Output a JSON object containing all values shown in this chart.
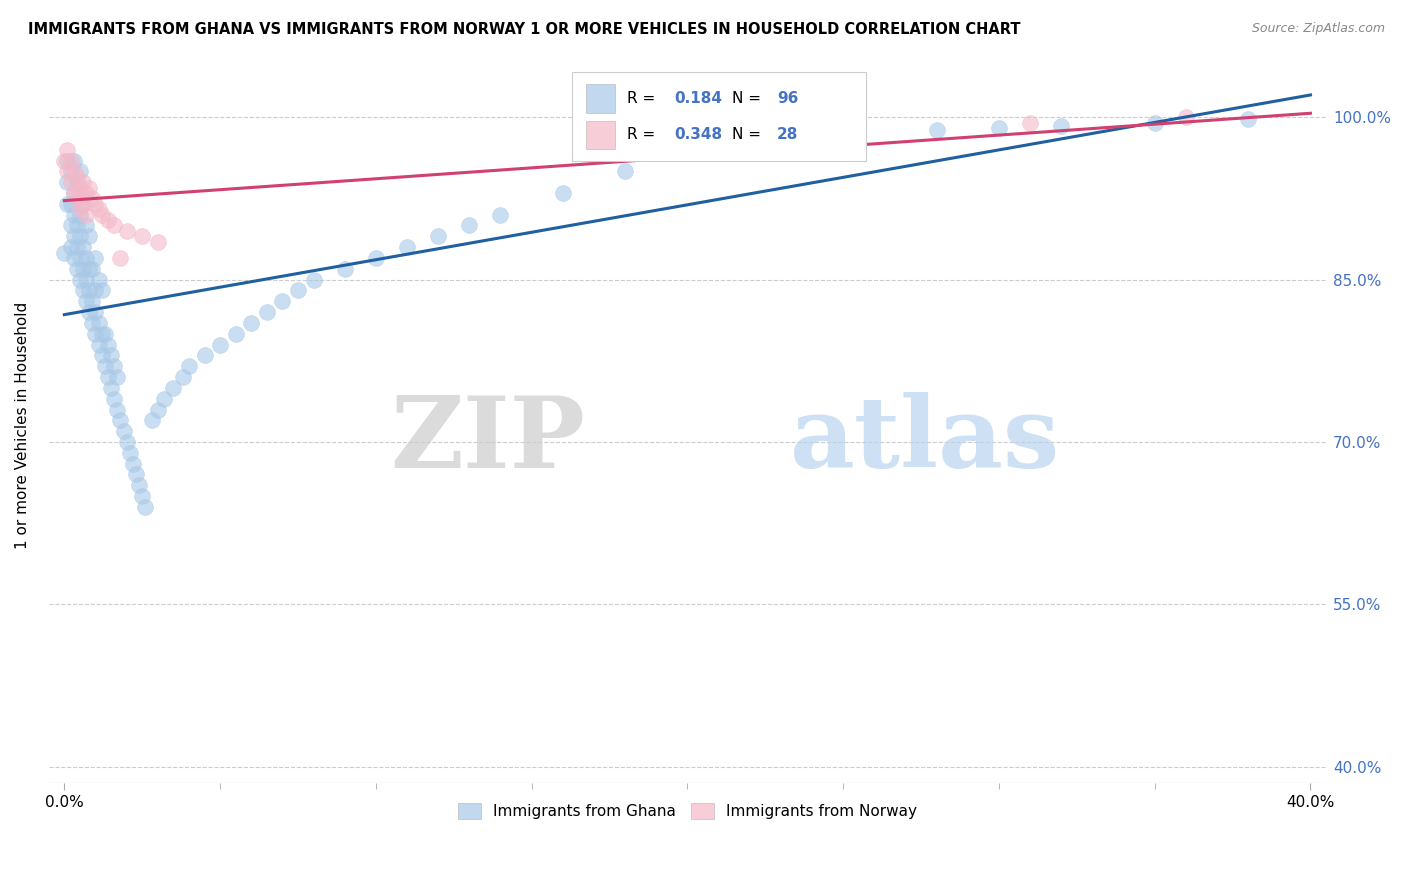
{
  "title": "IMMIGRANTS FROM GHANA VS IMMIGRANTS FROM NORWAY 1 OR MORE VEHICLES IN HOUSEHOLD CORRELATION CHART",
  "source": "Source: ZipAtlas.com",
  "ylabel": "1 or more Vehicles in Household",
  "ytick_vals": [
    1.0,
    0.85,
    0.7,
    0.55,
    0.4
  ],
  "ytick_labels": [
    "100.0%",
    "85.0%",
    "70.0%",
    "55.0%",
    "40.0%"
  ],
  "legend_ghana": "Immigrants from Ghana",
  "legend_norway": "Immigrants from Norway",
  "R_ghana": 0.184,
  "N_ghana": 96,
  "R_norway": 0.348,
  "N_norway": 28,
  "ghana_color": "#a8c8e8",
  "norway_color": "#f4b8c8",
  "ghana_line_color": "#2060a0",
  "norway_line_color": "#d04070",
  "watermark_zip": "ZIP",
  "watermark_atlas": "atlas",
  "ghana_x": [
    0.0,
    0.001,
    0.001,
    0.001,
    0.002,
    0.002,
    0.002,
    0.002,
    0.003,
    0.003,
    0.003,
    0.003,
    0.003,
    0.004,
    0.004,
    0.004,
    0.004,
    0.005,
    0.005,
    0.005,
    0.005,
    0.005,
    0.006,
    0.006,
    0.006,
    0.006,
    0.007,
    0.007,
    0.007,
    0.007,
    0.008,
    0.008,
    0.008,
    0.008,
    0.009,
    0.009,
    0.009,
    0.01,
    0.01,
    0.01,
    0.01,
    0.011,
    0.011,
    0.011,
    0.012,
    0.012,
    0.012,
    0.013,
    0.013,
    0.014,
    0.014,
    0.015,
    0.015,
    0.016,
    0.016,
    0.017,
    0.017,
    0.018,
    0.019,
    0.02,
    0.021,
    0.022,
    0.023,
    0.024,
    0.025,
    0.026,
    0.028,
    0.03,
    0.032,
    0.035,
    0.038,
    0.04,
    0.045,
    0.05,
    0.055,
    0.06,
    0.065,
    0.07,
    0.075,
    0.08,
    0.09,
    0.1,
    0.11,
    0.12,
    0.13,
    0.14,
    0.16,
    0.18,
    0.2,
    0.22,
    0.25,
    0.28,
    0.3,
    0.32,
    0.35,
    0.38
  ],
  "ghana_y": [
    0.875,
    0.92,
    0.94,
    0.96,
    0.88,
    0.9,
    0.92,
    0.95,
    0.87,
    0.89,
    0.91,
    0.93,
    0.96,
    0.86,
    0.88,
    0.9,
    0.94,
    0.85,
    0.87,
    0.89,
    0.91,
    0.95,
    0.84,
    0.86,
    0.88,
    0.92,
    0.83,
    0.85,
    0.87,
    0.9,
    0.82,
    0.84,
    0.86,
    0.89,
    0.81,
    0.83,
    0.86,
    0.8,
    0.82,
    0.84,
    0.87,
    0.79,
    0.81,
    0.85,
    0.78,
    0.8,
    0.84,
    0.77,
    0.8,
    0.76,
    0.79,
    0.75,
    0.78,
    0.74,
    0.77,
    0.73,
    0.76,
    0.72,
    0.71,
    0.7,
    0.69,
    0.68,
    0.67,
    0.66,
    0.65,
    0.64,
    0.72,
    0.73,
    0.74,
    0.75,
    0.76,
    0.77,
    0.78,
    0.79,
    0.8,
    0.81,
    0.82,
    0.83,
    0.84,
    0.85,
    0.86,
    0.87,
    0.88,
    0.89,
    0.9,
    0.91,
    0.93,
    0.95,
    0.97,
    0.98,
    0.985,
    0.988,
    0.99,
    0.992,
    0.995,
    0.998
  ],
  "norway_x": [
    0.0,
    0.001,
    0.001,
    0.002,
    0.002,
    0.003,
    0.003,
    0.004,
    0.004,
    0.005,
    0.005,
    0.006,
    0.006,
    0.007,
    0.007,
    0.008,
    0.009,
    0.01,
    0.011,
    0.012,
    0.014,
    0.016,
    0.018,
    0.02,
    0.025,
    0.03,
    0.31,
    0.36
  ],
  "norway_y": [
    0.96,
    0.97,
    0.95,
    0.96,
    0.94,
    0.95,
    0.93,
    0.945,
    0.925,
    0.935,
    0.915,
    0.94,
    0.92,
    0.93,
    0.91,
    0.935,
    0.925,
    0.92,
    0.915,
    0.91,
    0.905,
    0.9,
    0.87,
    0.895,
    0.89,
    0.885,
    0.995,
    1.0
  ]
}
